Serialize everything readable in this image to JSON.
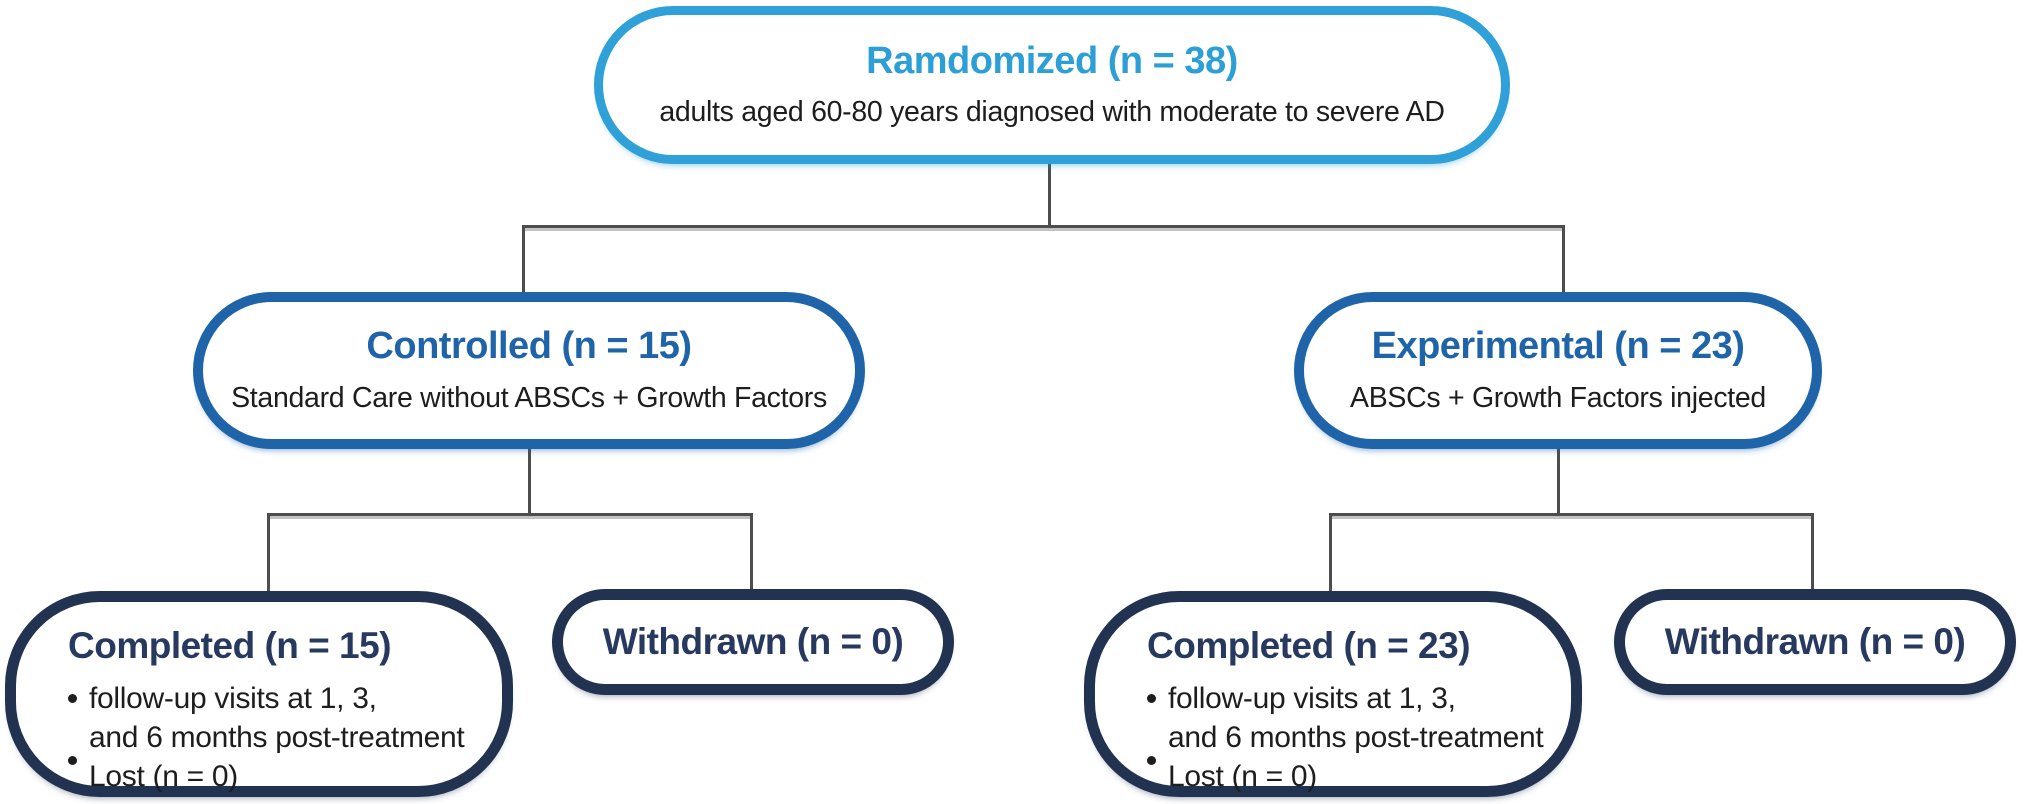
{
  "palette": {
    "sky_blue_border": "#2FA0D8",
    "sky_blue_text": "#2B9FD6",
    "medium_blue": "#1F64A8",
    "navy_border": "#223351",
    "navy_text": "#27395E",
    "body_text": "#1D1D1D",
    "connector_gray": "#4D4D4D",
    "background": "#FFFFFF"
  },
  "flowchart": {
    "randomized": {
      "title": "Ramdomized (n = 38)",
      "subtitle": "adults aged 60-80 years diagnosed with moderate to severe AD"
    },
    "controlled": {
      "title": "Controlled (n = 15)",
      "subtitle": "Standard Care without ABSCs + Growth Factors"
    },
    "experimental": {
      "title": "Experimental (n = 23)",
      "subtitle": "ABSCs + Growth Factors injected"
    },
    "controlled_completed": {
      "title": "Completed (n = 15)",
      "bullet1_line1": "follow-up visits at 1, 3,",
      "bullet1_line2": "and 6 months post-treatment",
      "bullet2": "Lost (n = 0)"
    },
    "controlled_withdrawn": {
      "title": "Withdrawn (n = 0)"
    },
    "experimental_completed": {
      "title": "Completed (n = 23)",
      "bullet1_line1": "follow-up visits at 1, 3,",
      "bullet1_line2": "and 6 months post-treatment",
      "bullet2": "Lost (n = 0)"
    },
    "experimental_withdrawn": {
      "title": "Withdrawn (n = 0)"
    }
  }
}
